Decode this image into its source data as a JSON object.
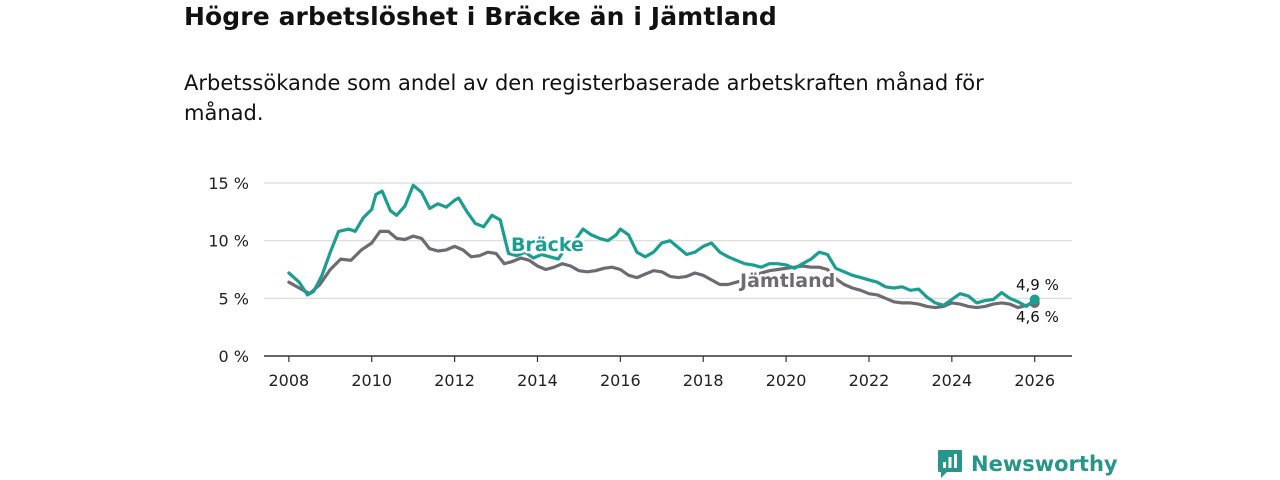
{
  "title": "Högre arbetslöshet i Bräcke än i Jämtland",
  "subtitle": "Arbetssökande som andel av den registerbaserade arbetskraften månad för månad.",
  "brand": "Newsworthy",
  "colors": {
    "bracke": "#1a9e91",
    "jamtland": "#6e6b70",
    "grid": "#d9d9d9",
    "axis": "#333333",
    "brand": "#27958a"
  },
  "chart_data": {
    "type": "line",
    "title": "Högre arbetslöshet i Bräcke än i Jämtland",
    "subtitle": "Arbetssökande som andel av den registerbaserade arbetskraften månad för månad.",
    "xlabel": "",
    "ylabel": "",
    "xlim": [
      2007.4,
      2026.9
    ],
    "ylim": [
      0,
      15
    ],
    "yticks": [
      0,
      5,
      10,
      15
    ],
    "ytick_labels": [
      "0 %",
      "5 %",
      "10 %",
      "15 %"
    ],
    "xticks": [
      2008,
      2010,
      2012,
      2014,
      2016,
      2018,
      2020,
      2022,
      2024,
      2026
    ],
    "xtick_labels": [
      "2008",
      "2010",
      "2012",
      "2014",
      "2016",
      "2018",
      "2020",
      "2022",
      "2024",
      "2026"
    ],
    "grid": true,
    "series": [
      {
        "name": "Bräcke",
        "label": "Bräcke",
        "end_label": "4,9 %",
        "color": "#1a9e91",
        "x": [
          2008.0,
          2008.25,
          2008.45,
          2008.6,
          2008.8,
          2009.0,
          2009.2,
          2009.45,
          2009.6,
          2009.8,
          2010.0,
          2010.1,
          2010.25,
          2010.45,
          2010.6,
          2010.8,
          2011.0,
          2011.2,
          2011.4,
          2011.6,
          2011.8,
          2012.0,
          2012.1,
          2012.3,
          2012.5,
          2012.7,
          2012.9,
          2013.1,
          2013.3,
          2013.5,
          2013.7,
          2013.9,
          2014.1,
          2014.3,
          2014.5,
          2014.7,
          2014.9,
          2015.1,
          2015.3,
          2015.5,
          2015.7,
          2015.9,
          2016.0,
          2016.2,
          2016.4,
          2016.6,
          2016.8,
          2017.0,
          2017.2,
          2017.4,
          2017.6,
          2017.8,
          2018.0,
          2018.2,
          2018.4,
          2018.6,
          2018.8,
          2019.0,
          2019.2,
          2019.4,
          2019.6,
          2019.8,
          2020.0,
          2020.2,
          2020.4,
          2020.6,
          2020.8,
          2021.0,
          2021.2,
          2021.4,
          2021.6,
          2021.8,
          2022.0,
          2022.2,
          2022.4,
          2022.6,
          2022.8,
          2023.0,
          2023.2,
          2023.4,
          2023.6,
          2023.8,
          2024.0,
          2024.2,
          2024.4,
          2024.6,
          2024.8,
          2025.0,
          2025.2,
          2025.4,
          2025.6,
          2025.8,
          2026.0
        ],
        "values": [
          7.2,
          6.4,
          5.3,
          5.6,
          7.0,
          9.0,
          10.8,
          11.0,
          10.8,
          12.0,
          12.7,
          14.0,
          14.3,
          12.6,
          12.2,
          13.0,
          14.8,
          14.2,
          12.8,
          13.2,
          12.9,
          13.5,
          13.7,
          12.5,
          11.5,
          11.2,
          12.2,
          11.8,
          8.9,
          8.7,
          9.0,
          8.5,
          8.8,
          8.6,
          8.4,
          9.5,
          10.0,
          11.0,
          10.5,
          10.2,
          10.0,
          10.5,
          11.0,
          10.5,
          9.0,
          8.6,
          9.0,
          9.8,
          10.0,
          9.4,
          8.8,
          9.0,
          9.5,
          9.8,
          9.0,
          8.6,
          8.3,
          8.0,
          7.9,
          7.7,
          8.0,
          8.0,
          7.9,
          7.6,
          8.0,
          8.4,
          9.0,
          8.8,
          7.6,
          7.3,
          7.0,
          6.8,
          6.6,
          6.4,
          6.0,
          5.9,
          6.0,
          5.7,
          5.8,
          5.1,
          4.6,
          4.4,
          4.9,
          5.4,
          5.2,
          4.6,
          4.8,
          4.9,
          5.5,
          5.0,
          4.7,
          4.3,
          4.9
        ]
      },
      {
        "name": "Jämtland",
        "label": "Jämtland",
        "end_label": "4,6 %",
        "color": "#6e6b70",
        "x": [
          2008.0,
          2008.25,
          2008.5,
          2008.75,
          2009.0,
          2009.25,
          2009.5,
          2009.75,
          2010.0,
          2010.2,
          2010.4,
          2010.6,
          2010.8,
          2011.0,
          2011.2,
          2011.4,
          2011.6,
          2011.8,
          2012.0,
          2012.2,
          2012.4,
          2012.6,
          2012.8,
          2013.0,
          2013.2,
          2013.4,
          2013.6,
          2013.8,
          2014.0,
          2014.2,
          2014.4,
          2014.6,
          2014.8,
          2015.0,
          2015.2,
          2015.4,
          2015.6,
          2015.8,
          2016.0,
          2016.2,
          2016.4,
          2016.6,
          2016.8,
          2017.0,
          2017.2,
          2017.4,
          2017.6,
          2017.8,
          2018.0,
          2018.2,
          2018.4,
          2018.6,
          2018.8,
          2019.0,
          2019.2,
          2019.4,
          2019.6,
          2019.8,
          2020.0,
          2020.2,
          2020.4,
          2020.6,
          2020.8,
          2021.0,
          2021.2,
          2021.4,
          2021.6,
          2021.8,
          2022.0,
          2022.2,
          2022.4,
          2022.6,
          2022.8,
          2023.0,
          2023.2,
          2023.4,
          2023.6,
          2023.8,
          2024.0,
          2024.2,
          2024.4,
          2024.6,
          2024.8,
          2025.0,
          2025.2,
          2025.4,
          2025.6,
          2025.8,
          2026.0
        ],
        "values": [
          6.4,
          5.9,
          5.4,
          6.2,
          7.5,
          8.4,
          8.3,
          9.2,
          9.8,
          10.8,
          10.8,
          10.2,
          10.1,
          10.4,
          10.2,
          9.3,
          9.1,
          9.2,
          9.5,
          9.2,
          8.6,
          8.7,
          9.0,
          8.9,
          8.0,
          8.2,
          8.5,
          8.3,
          7.8,
          7.5,
          7.7,
          8.0,
          7.8,
          7.4,
          7.3,
          7.4,
          7.6,
          7.7,
          7.5,
          7.0,
          6.8,
          7.1,
          7.4,
          7.3,
          6.9,
          6.8,
          6.9,
          7.2,
          7.0,
          6.6,
          6.2,
          6.2,
          6.4,
          6.6,
          6.9,
          7.2,
          7.4,
          7.5,
          7.6,
          7.7,
          7.8,
          7.7,
          7.7,
          7.5,
          6.7,
          6.2,
          5.9,
          5.7,
          5.4,
          5.3,
          5.0,
          4.7,
          4.6,
          4.6,
          4.5,
          4.3,
          4.2,
          4.3,
          4.6,
          4.5,
          4.3,
          4.2,
          4.3,
          4.5,
          4.6,
          4.5,
          4.2,
          4.4,
          4.6
        ]
      }
    ]
  }
}
